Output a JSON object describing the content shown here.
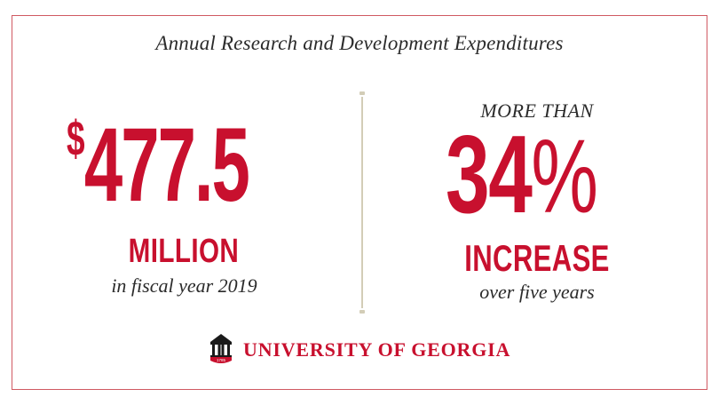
{
  "title": "Annual Research and Development Expenditures",
  "left_stat": {
    "currency": "$",
    "value": "477.5",
    "unit": "MILLION",
    "caption": "in fiscal year 2019"
  },
  "right_stat": {
    "prefix": "MORE THAN",
    "value": "34",
    "percent_sign": "%",
    "label": "INCREASE",
    "caption": "over five years"
  },
  "logo": {
    "wordmark": "UNIVERSITY OF GEORGIA",
    "emblem_year": "1785",
    "emblem_icon": "arch-icon"
  },
  "colors": {
    "brand_red": "#c8102e",
    "border": "#d05a62",
    "divider": "#d3cdb7",
    "text_dark": "#2b2b2b"
  }
}
